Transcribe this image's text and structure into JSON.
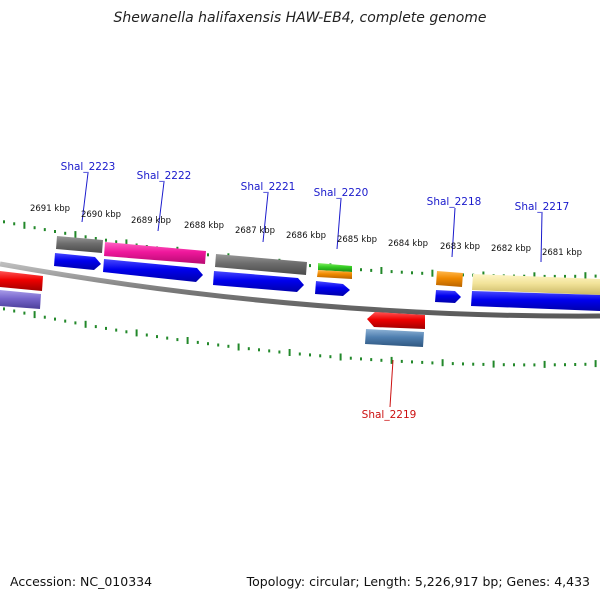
{
  "title": "Shewanella halifaxensis HAW-EB4, complete genome",
  "footer": {
    "accession": "Accession: NC_010334",
    "summary": "Topology: circular; Length: 5,226,917 bp; Genes: 4,433"
  },
  "colors": {
    "backbone": "#888888",
    "tick": "#22882a",
    "forward_label": "#1a1acc",
    "reverse_label": "#cc1111"
  },
  "ruler_labels": [
    "2691 kbp",
    "2690 kbp",
    "2689 kbp",
    "2688 kbp",
    "2687 kbp",
    "2686 kbp",
    "2685 kbp",
    "2684 kbp",
    "2683 kbp",
    "2682 kbp",
    "2681 kbp"
  ],
  "gene_labels": [
    {
      "text": "Shal_2223",
      "strand": "forward"
    },
    {
      "text": "Shal_2222",
      "strand": "forward"
    },
    {
      "text": "Shal_2221",
      "strand": "forward"
    },
    {
      "text": "Shal_2220",
      "strand": "forward"
    },
    {
      "text": "Shal_2218",
      "strand": "forward"
    },
    {
      "text": "Shal_2217",
      "strand": "forward"
    },
    {
      "text": "Shal_2219",
      "strand": "reverse"
    }
  ]
}
